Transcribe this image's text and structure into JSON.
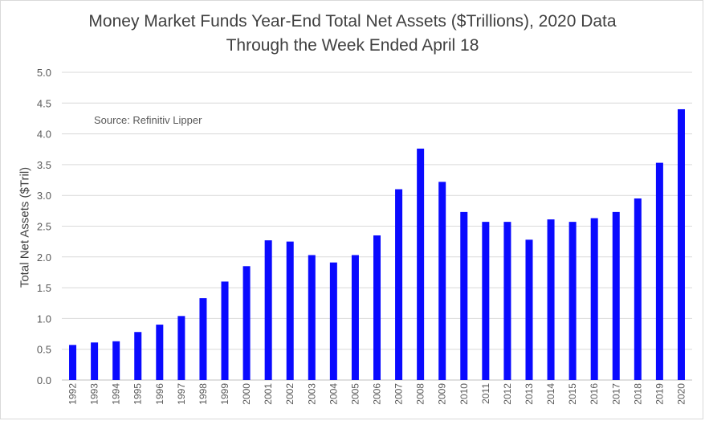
{
  "chart_data": {
    "type": "bar",
    "title": [
      "Money Market Funds Year-End Total Net Assets ($Trillions), 2020 Data",
      "Through the Week Ended April 18"
    ],
    "annotation": "Source: Refinitiv Lipper",
    "xlabel": "",
    "ylabel": "Total Net Assets ($Tril)",
    "ylim": [
      0,
      5.0
    ],
    "yticks": [
      "0.0",
      "0.5",
      "1.0",
      "1.5",
      "2.0",
      "2.5",
      "3.0",
      "3.5",
      "4.0",
      "4.5",
      "5.0"
    ],
    "grid": true,
    "bar_color": "#0a0aff",
    "categories": [
      "1992",
      "1993",
      "1994",
      "1995",
      "1996",
      "1997",
      "1998",
      "1999",
      "2000",
      "2001",
      "2002",
      "2003",
      "2004",
      "2005",
      "2006",
      "2007",
      "2008",
      "2009",
      "2010",
      "2011",
      "2012",
      "2013",
      "2014",
      "2015",
      "2016",
      "2017",
      "2018",
      "2019",
      "2020"
    ],
    "values": [
      0.57,
      0.61,
      0.63,
      0.78,
      0.9,
      1.04,
      1.33,
      1.6,
      1.85,
      2.27,
      2.25,
      2.03,
      1.91,
      2.03,
      2.35,
      3.1,
      3.76,
      3.22,
      2.73,
      2.57,
      2.57,
      2.28,
      2.61,
      2.57,
      2.63,
      2.73,
      2.95,
      3.53,
      4.4
    ]
  }
}
